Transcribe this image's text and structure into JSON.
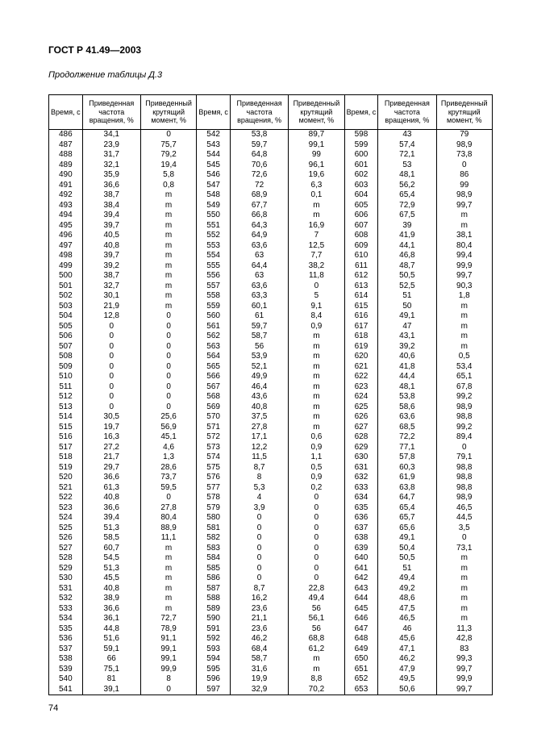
{
  "header": "ГОСТ Р 41.49—2003",
  "subheader": "Продолжение таблицы Д.3",
  "pageNumber": "74",
  "columns": {
    "time": "Время, с",
    "freq": "Приведенная частота вращения, %",
    "torque": "Приведенный крутящий момент, %"
  },
  "rows": [
    [
      "486",
      "34,1",
      "0",
      "542",
      "53,8",
      "89,7",
      "598",
      "43",
      "79"
    ],
    [
      "487",
      "23,9",
      "75,7",
      "543",
      "59,7",
      "99,1",
      "599",
      "57,4",
      "98,9"
    ],
    [
      "488",
      "31,7",
      "79,2",
      "544",
      "64,8",
      "99",
      "600",
      "72,1",
      "73,8"
    ],
    [
      "489",
      "32,1",
      "19,4",
      "545",
      "70,6",
      "96,1",
      "601",
      "53",
      "0"
    ],
    [
      "490",
      "35,9",
      "5,8",
      "546",
      "72,6",
      "19,6",
      "602",
      "48,1",
      "86"
    ],
    [
      "491",
      "36,6",
      "0,8",
      "547",
      "72",
      "6,3",
      "603",
      "56,2",
      "99"
    ],
    [
      "492",
      "38,7",
      "m",
      "548",
      "68,9",
      "0,1",
      "604",
      "65,4",
      "98,9"
    ],
    [
      "493",
      "38,4",
      "m",
      "549",
      "67,7",
      "m",
      "605",
      "72,9",
      "99,7"
    ],
    [
      "494",
      "39,4",
      "m",
      "550",
      "66,8",
      "m",
      "606",
      "67,5",
      "m"
    ],
    [
      "495",
      "39,7",
      "m",
      "551",
      "64,3",
      "16,9",
      "607",
      "39",
      "m"
    ],
    [
      "496",
      "40,5",
      "m",
      "552",
      "64,9",
      "7",
      "608",
      "41,9",
      "38,1"
    ],
    [
      "497",
      "40,8",
      "m",
      "553",
      "63,6",
      "12,5",
      "609",
      "44,1",
      "80,4"
    ],
    [
      "498",
      "39,7",
      "m",
      "554",
      "63",
      "7,7",
      "610",
      "46,8",
      "99,4"
    ],
    [
      "499",
      "39,2",
      "m",
      "555",
      "64,4",
      "38,2",
      "611",
      "48,7",
      "99,9"
    ],
    [
      "500",
      "38,7",
      "m",
      "556",
      "63",
      "11,8",
      "612",
      "50,5",
      "99,7"
    ],
    [
      "501",
      "32,7",
      "m",
      "557",
      "63,6",
      "0",
      "613",
      "52,5",
      "90,3"
    ],
    [
      "502",
      "30,1",
      "m",
      "558",
      "63,3",
      "5",
      "614",
      "51",
      "1,8"
    ],
    [
      "503",
      "21,9",
      "m",
      "559",
      "60,1",
      "9,1",
      "615",
      "50",
      "m"
    ],
    [
      "504",
      "12,8",
      "0",
      "560",
      "61",
      "8,4",
      "616",
      "49,1",
      "m"
    ],
    [
      "505",
      "0",
      "0",
      "561",
      "59,7",
      "0,9",
      "617",
      "47",
      "m"
    ],
    [
      "506",
      "0",
      "0",
      "562",
      "58,7",
      "m",
      "618",
      "43,1",
      "m"
    ],
    [
      "507",
      "0",
      "0",
      "563",
      "56",
      "m",
      "619",
      "39,2",
      "m"
    ],
    [
      "508",
      "0",
      "0",
      "564",
      "53,9",
      "m",
      "620",
      "40,6",
      "0,5"
    ],
    [
      "509",
      "0",
      "0",
      "565",
      "52,1",
      "m",
      "621",
      "41,8",
      "53,4"
    ],
    [
      "510",
      "0",
      "0",
      "566",
      "49,9",
      "m",
      "622",
      "44,4",
      "65,1"
    ],
    [
      "511",
      "0",
      "0",
      "567",
      "46,4",
      "m",
      "623",
      "48,1",
      "67,8"
    ],
    [
      "512",
      "0",
      "0",
      "568",
      "43,6",
      "m",
      "624",
      "53,8",
      "99,2"
    ],
    [
      "513",
      "0",
      "0",
      "569",
      "40,8",
      "m",
      "625",
      "58,6",
      "98,9"
    ],
    [
      "514",
      "30,5",
      "25,6",
      "570",
      "37,5",
      "m",
      "626",
      "63,6",
      "98,8"
    ],
    [
      "515",
      "19,7",
      "56,9",
      "571",
      "27,8",
      "m",
      "627",
      "68,5",
      "99,2"
    ],
    [
      "516",
      "16,3",
      "45,1",
      "572",
      "17,1",
      "0,6",
      "628",
      "72,2",
      "89,4"
    ],
    [
      "517",
      "27,2",
      "4,6",
      "573",
      "12,2",
      "0,9",
      "629",
      "77,1",
      "0"
    ],
    [
      "518",
      "21,7",
      "1,3",
      "574",
      "11,5",
      "1,1",
      "630",
      "57,8",
      "79,1"
    ],
    [
      "519",
      "29,7",
      "28,6",
      "575",
      "8,7",
      "0,5",
      "631",
      "60,3",
      "98,8"
    ],
    [
      "520",
      "36,6",
      "73,7",
      "576",
      "8",
      "0,9",
      "632",
      "61,9",
      "98,8"
    ],
    [
      "521",
      "61,3",
      "59,5",
      "577",
      "5,3",
      "0,2",
      "633",
      "63,8",
      "98,8"
    ],
    [
      "522",
      "40,8",
      "0",
      "578",
      "4",
      "0",
      "634",
      "64,7",
      "98,9"
    ],
    [
      "523",
      "36,6",
      "27,8",
      "579",
      "3,9",
      "0",
      "635",
      "65,4",
      "46,5"
    ],
    [
      "524",
      "39,4",
      "80,4",
      "580",
      "0",
      "0",
      "636",
      "65,7",
      "44,5"
    ],
    [
      "525",
      "51,3",
      "88,9",
      "581",
      "0",
      "0",
      "637",
      "65,6",
      "3,5"
    ],
    [
      "526",
      "58,5",
      "11,1",
      "582",
      "0",
      "0",
      "638",
      "49,1",
      "0"
    ],
    [
      "527",
      "60,7",
      "m",
      "583",
      "0",
      "0",
      "639",
      "50,4",
      "73,1"
    ],
    [
      "528",
      "54,5",
      "m",
      "584",
      "0",
      "0",
      "640",
      "50,5",
      "m"
    ],
    [
      "529",
      "51,3",
      "m",
      "585",
      "0",
      "0",
      "641",
      "51",
      "m"
    ],
    [
      "530",
      "45,5",
      "m",
      "586",
      "0",
      "0",
      "642",
      "49,4",
      "m"
    ],
    [
      "531",
      "40,8",
      "m",
      "587",
      "8,7",
      "22,8",
      "643",
      "49,2",
      "m"
    ],
    [
      "532",
      "38,9",
      "m",
      "588",
      "16,2",
      "49,4",
      "644",
      "48,6",
      "m"
    ],
    [
      "533",
      "36,6",
      "m",
      "589",
      "23,6",
      "56",
      "645",
      "47,5",
      "m"
    ],
    [
      "534",
      "36,1",
      "72,7",
      "590",
      "21,1",
      "56,1",
      "646",
      "46,5",
      "m"
    ],
    [
      "535",
      "44,8",
      "78,9",
      "591",
      "23,6",
      "56",
      "647",
      "46",
      "11,3"
    ],
    [
      "536",
      "51,6",
      "91,1",
      "592",
      "46,2",
      "68,8",
      "648",
      "45,6",
      "42,8"
    ],
    [
      "537",
      "59,1",
      "99,1",
      "593",
      "68,4",
      "61,2",
      "649",
      "47,1",
      "83"
    ],
    [
      "538",
      "66",
      "99,1",
      "594",
      "58,7",
      "m",
      "650",
      "46,2",
      "99,3"
    ],
    [
      "539",
      "75,1",
      "99,9",
      "595",
      "31,6",
      "m",
      "651",
      "47,9",
      "99,7"
    ],
    [
      "540",
      "81",
      "8",
      "596",
      "19,9",
      "8,8",
      "652",
      "49,5",
      "99,9"
    ],
    [
      "541",
      "39,1",
      "0",
      "597",
      "32,9",
      "70,2",
      "653",
      "50,6",
      "99,7"
    ]
  ]
}
